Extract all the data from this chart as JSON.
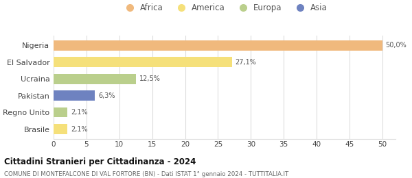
{
  "categories": [
    "Nigeria",
    "El Salvador",
    "Ucraina",
    "Pakistan",
    "Regno Unito",
    "Brasile"
  ],
  "values": [
    50.0,
    27.1,
    12.5,
    6.3,
    2.1,
    2.1
  ],
  "labels": [
    "50,0%",
    "27,1%",
    "12,5%",
    "6,3%",
    "2,1%",
    "2,1%"
  ],
  "colors": [
    "#F0B97D",
    "#F5E07A",
    "#BACF8C",
    "#6E82C0",
    "#BACF8C",
    "#F5E07A"
  ],
  "legend_labels": [
    "Africa",
    "America",
    "Europa",
    "Asia"
  ],
  "legend_colors": [
    "#F0B97D",
    "#F5E07A",
    "#BACF8C",
    "#6E82C0"
  ],
  "title": "Cittadini Stranieri per Cittadinanza - 2024",
  "subtitle": "COMUNE DI MONTEFALCONE DI VAL FORTORE (BN) - Dati ISTAT 1° gennaio 2024 - TUTTITALIA.IT",
  "xlim": [
    0,
    52
  ],
  "xticks": [
    0,
    5,
    10,
    15,
    20,
    25,
    30,
    35,
    40,
    45,
    50
  ],
  "background_color": "#ffffff",
  "grid_color": "#dddddd",
  "bar_height": 0.6
}
